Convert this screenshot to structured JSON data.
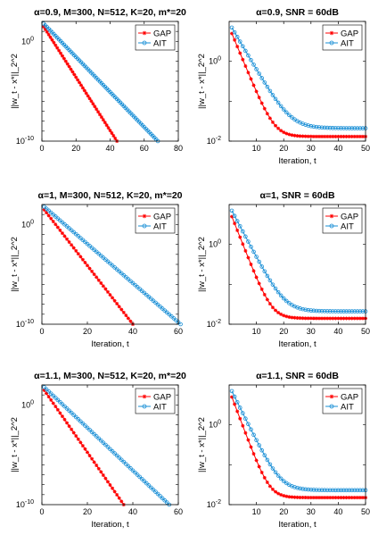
{
  "colors": {
    "gap": "#ff0000",
    "ait": "#1a8fd6"
  },
  "chart_data": [
    {
      "type": "line",
      "title": "α=0.9, M=300, N=512, K=20, m*=20",
      "xlabel": "",
      "ylabel": "||w_t - x*||_2^2",
      "xlim": [
        0,
        80
      ],
      "ylim": [
        1e-10,
        100
      ],
      "yscale": "log",
      "xticks": [
        "0",
        "20",
        "40",
        "60",
        "80"
      ],
      "yticks": [
        {
          "base": "10",
          "exp": "0",
          "value": 1
        },
        {
          "base": "10",
          "exp": "-10",
          "value": 1e-10
        }
      ],
      "legend": "top-right",
      "series": [
        {
          "name": "GAP",
          "color_key": "gap",
          "marker": "star",
          "x_start": 1,
          "x_end": 44,
          "y_start": 30,
          "y_end": 1e-10,
          "curve": "linear"
        },
        {
          "name": "AIT",
          "color_key": "ait",
          "marker": "circle",
          "x_start": 1,
          "x_end": 68,
          "y_start": 60,
          "y_end": 1e-10,
          "curve": "linear"
        }
      ]
    },
    {
      "type": "line",
      "title": "α=0.9, SNR = 60dB",
      "xlabel": "Iteration, t",
      "ylabel": "||w_t - x*||_2^2",
      "xlim": [
        0,
        50
      ],
      "ylim": [
        0.01,
        10
      ],
      "yscale": "log",
      "xticks": [
        "10",
        "20",
        "30",
        "40",
        "50"
      ],
      "yticks": [
        {
          "base": "10",
          "exp": "0",
          "value": 1
        },
        {
          "base": "10",
          "exp": "-2",
          "value": 0.01
        }
      ],
      "legend": "top-right",
      "series": [
        {
          "name": "GAP",
          "color_key": "gap",
          "marker": "star",
          "x_start": 1,
          "x_end": 50,
          "y_start": 5,
          "y_end": 0.013,
          "rate": 0.38,
          "curve": "exp"
        },
        {
          "name": "AIT",
          "color_key": "ait",
          "marker": "circle",
          "x_start": 1,
          "x_end": 50,
          "y_start": 7,
          "y_end": 0.021,
          "rate": 0.27,
          "curve": "exp"
        }
      ]
    },
    {
      "type": "line",
      "title": "α=1, M=300, N=512, K=20, m*=20",
      "xlabel": "Iteration, t",
      "ylabel": "||w_t - x*||_2^2",
      "xlim": [
        0,
        60
      ],
      "ylim": [
        1e-10,
        100
      ],
      "yscale": "log",
      "xticks": [
        "0",
        "20",
        "40",
        "60"
      ],
      "yticks": [
        {
          "base": "10",
          "exp": "0",
          "value": 1
        },
        {
          "base": "10",
          "exp": "-10",
          "value": 1e-10
        }
      ],
      "legend": "top-right",
      "series": [
        {
          "name": "GAP",
          "color_key": "gap",
          "marker": "star",
          "x_start": 1,
          "x_end": 40,
          "y_start": 30,
          "y_end": 1e-10,
          "curve": "linear"
        },
        {
          "name": "AIT",
          "color_key": "ait",
          "marker": "circle",
          "x_start": 1,
          "x_end": 61,
          "y_start": 60,
          "y_end": 1e-10,
          "curve": "linear"
        }
      ]
    },
    {
      "type": "line",
      "title": "α=1, SNR = 60dB",
      "xlabel": "Iteration, t",
      "ylabel": "||w_t - x*||_2^2",
      "xlim": [
        0,
        50
      ],
      "ylim": [
        0.01,
        10
      ],
      "yscale": "log",
      "xticks": [
        "10",
        "20",
        "30",
        "40",
        "50"
      ],
      "yticks": [
        {
          "base": "10",
          "exp": "0",
          "value": 1
        },
        {
          "base": "10",
          "exp": "-2",
          "value": 0.01
        }
      ],
      "legend": "top-right",
      "series": [
        {
          "name": "GAP",
          "color_key": "gap",
          "marker": "star",
          "x_start": 1,
          "x_end": 50,
          "y_start": 5,
          "y_end": 0.014,
          "rate": 0.4,
          "curve": "exp"
        },
        {
          "name": "AIT",
          "color_key": "ait",
          "marker": "circle",
          "x_start": 1,
          "x_end": 50,
          "y_start": 7,
          "y_end": 0.021,
          "rate": 0.3,
          "curve": "exp"
        }
      ]
    },
    {
      "type": "line",
      "title": "α=1.1, M=300, N=512, K=20, m*=20",
      "xlabel": "Iteration, t",
      "ylabel": "||w_t - x*||_2^2",
      "xlim": [
        0,
        60
      ],
      "ylim": [
        1e-10,
        100
      ],
      "yscale": "log",
      "xticks": [
        "0",
        "20",
        "40",
        "60"
      ],
      "yticks": [
        {
          "base": "10",
          "exp": "0",
          "value": 1
        },
        {
          "base": "10",
          "exp": "-10",
          "value": 1e-10
        }
      ],
      "legend": "top-right",
      "series": [
        {
          "name": "GAP",
          "color_key": "gap",
          "marker": "star",
          "x_start": 1,
          "x_end": 36,
          "y_start": 30,
          "y_end": 1e-10,
          "curve": "linear"
        },
        {
          "name": "AIT",
          "color_key": "ait",
          "marker": "circle",
          "x_start": 1,
          "x_end": 56,
          "y_start": 60,
          "y_end": 1e-10,
          "curve": "linear"
        }
      ]
    },
    {
      "type": "line",
      "title": "α=1.1, SNR = 60dB",
      "xlabel": "Iteration, t",
      "ylabel": "||w_t - x*||_2^2",
      "xlim": [
        0,
        50
      ],
      "ylim": [
        0.01,
        10
      ],
      "yscale": "log",
      "xticks": [
        "10",
        "20",
        "30",
        "40",
        "50"
      ],
      "yticks": [
        {
          "base": "10",
          "exp": "0",
          "value": 1
        },
        {
          "base": "10",
          "exp": "-2",
          "value": 0.01
        }
      ],
      "legend": "top-right",
      "series": [
        {
          "name": "GAP",
          "color_key": "gap",
          "marker": "star",
          "x_start": 1,
          "x_end": 50,
          "y_start": 5,
          "y_end": 0.015,
          "rate": 0.42,
          "curve": "exp"
        },
        {
          "name": "AIT",
          "color_key": "ait",
          "marker": "circle",
          "x_start": 1,
          "x_end": 50,
          "y_start": 7,
          "y_end": 0.023,
          "rate": 0.32,
          "curve": "exp"
        }
      ]
    }
  ]
}
